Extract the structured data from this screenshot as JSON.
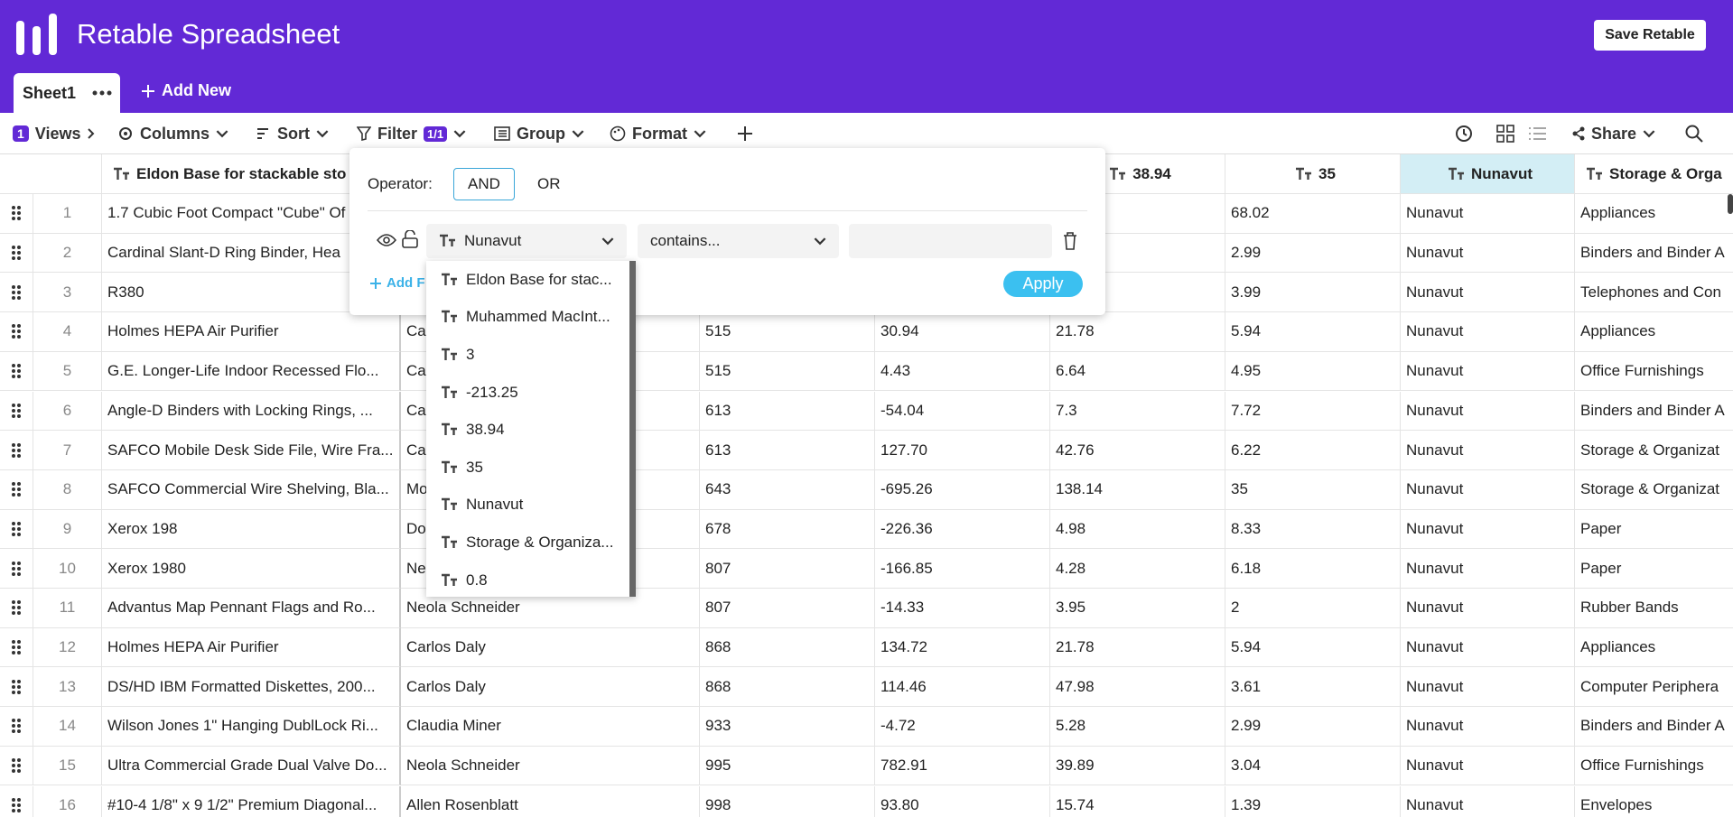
{
  "header": {
    "title": "Retable Spreadsheet",
    "save_button": "Save Retable"
  },
  "tabs": {
    "sheet": "Sheet1",
    "add_new": "Add New"
  },
  "toolbar": {
    "views_count": "1",
    "views": "Views",
    "columns": "Columns",
    "sort": "Sort",
    "filter": "Filter",
    "filter_badge": "1/1",
    "group": "Group",
    "format": "Format",
    "share": "Share"
  },
  "filter_popup": {
    "operator_label": "Operator:",
    "and": "AND",
    "or": "OR",
    "column": "Nunavut",
    "condition": "contains...",
    "add_filter": "Add F",
    "apply": "Apply"
  },
  "column_dropdown": [
    "Eldon Base for stac...",
    "Muhammed MacInt...",
    "3",
    "-213.25",
    "38.94",
    "35",
    "Nunavut",
    "Storage & Organiza...",
    "0.8"
  ],
  "table": {
    "headers": [
      "Eldon Base for stackable sto",
      null,
      null,
      null,
      "38.94",
      "35",
      "Nunavut",
      "Storage & Orga"
    ],
    "rows": [
      [
        "1",
        "1.7 Cubic Foot Compact \"Cube\" Of",
        null,
        null,
        null,
        null,
        "68.02",
        "Nunavut",
        "Appliances"
      ],
      [
        "2",
        "Cardinal Slant-D Ring Binder, Hea",
        null,
        null,
        null,
        null,
        "2.99",
        "Nunavut",
        "Binders and Binder A"
      ],
      [
        "3",
        "R380",
        null,
        null,
        null,
        null,
        "3.99",
        "Nunavut",
        "Telephones and Con"
      ],
      [
        "4",
        "Holmes HEPA Air Purifier",
        "Ca",
        "515",
        "30.94",
        "21.78",
        "5.94",
        "Nunavut",
        "Appliances"
      ],
      [
        "5",
        "G.E. Longer-Life Indoor Recessed Flo...",
        "Ca",
        "515",
        "4.43",
        "6.64",
        "4.95",
        "Nunavut",
        "Office Furnishings"
      ],
      [
        "6",
        "Angle-D Binders with Locking Rings, ...",
        "Ca",
        "613",
        "-54.04",
        "7.3",
        "7.72",
        "Nunavut",
        "Binders and Binder A"
      ],
      [
        "7",
        "SAFCO Mobile Desk Side File, Wire Fra...",
        "Ca",
        "613",
        "127.70",
        "42.76",
        "6.22",
        "Nunavut",
        "Storage & Organizat"
      ],
      [
        "8",
        "SAFCO Commercial Wire Shelving, Bla...",
        "Mo",
        "643",
        "-695.26",
        "138.14",
        "35",
        "Nunavut",
        "Storage & Organizat"
      ],
      [
        "9",
        "Xerox 198",
        "Do",
        "678",
        "-226.36",
        "4.98",
        "8.33",
        "Nunavut",
        "Paper"
      ],
      [
        "10",
        "Xerox 1980",
        "Ne",
        "807",
        "-166.85",
        "4.28",
        "6.18",
        "Nunavut",
        "Paper"
      ],
      [
        "11",
        "Advantus Map Pennant Flags and Ro...",
        "Neola Schneider",
        "807",
        "-14.33",
        "3.95",
        "2",
        "Nunavut",
        "Rubber Bands"
      ],
      [
        "12",
        "Holmes HEPA Air Purifier",
        "Carlos Daly",
        "868",
        "134.72",
        "21.78",
        "5.94",
        "Nunavut",
        "Appliances"
      ],
      [
        "13",
        "DS/HD IBM Formatted Diskettes, 200...",
        "Carlos Daly",
        "868",
        "114.46",
        "47.98",
        "3.61",
        "Nunavut",
        "Computer Periphera"
      ],
      [
        "14",
        "Wilson Jones 1\" Hanging DublLock Ri...",
        "Claudia Miner",
        "933",
        "-4.72",
        "5.28",
        "2.99",
        "Nunavut",
        "Binders and Binder A"
      ],
      [
        "15",
        "Ultra Commercial Grade Dual Valve Do...",
        "Neola Schneider",
        "995",
        "782.91",
        "39.89",
        "3.04",
        "Nunavut",
        "Office Furnishings"
      ],
      [
        "16",
        "#10-4 1/8\" x 9 1/2\" Premium Diagonal...",
        "Allen Rosenblatt",
        "998",
        "93.80",
        "15.74",
        "1.39",
        "Nunavut",
        "Envelopes"
      ]
    ]
  }
}
